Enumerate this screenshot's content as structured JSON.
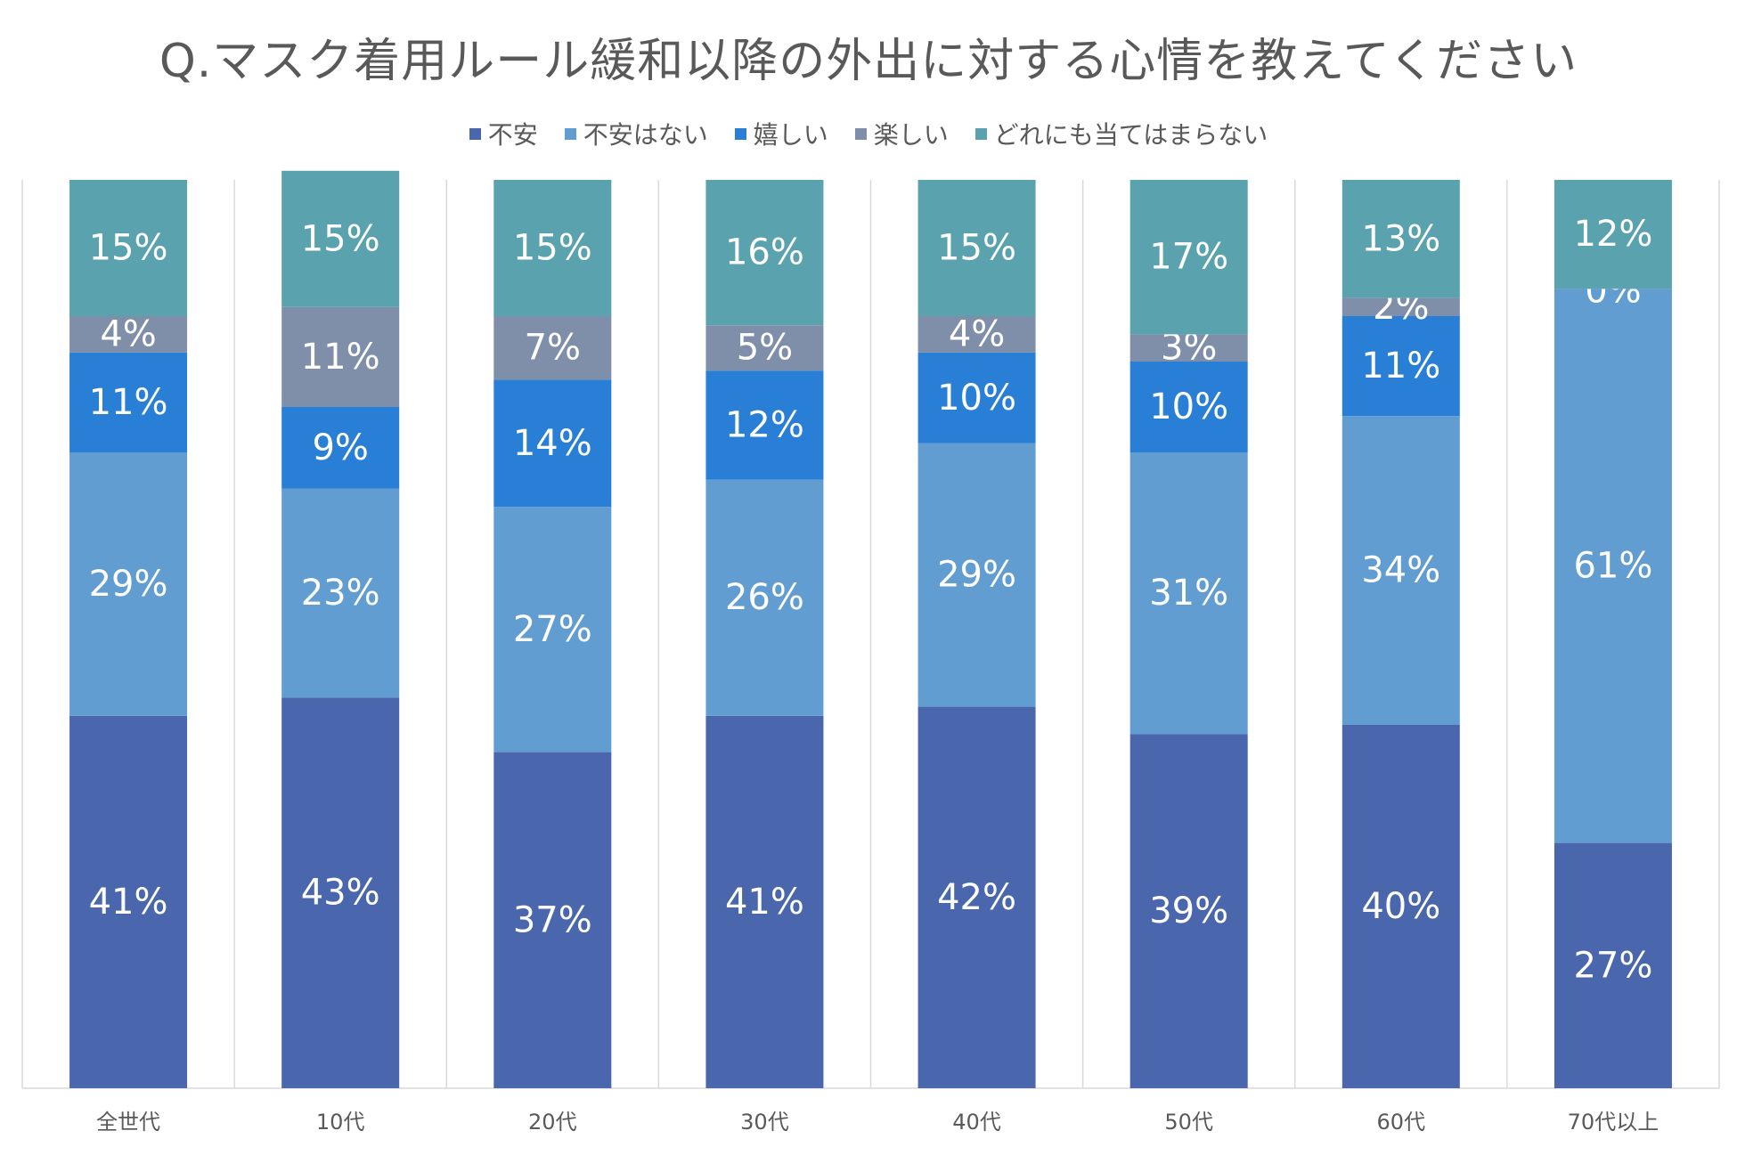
{
  "chart_data": {
    "type": "bar",
    "stacked": true,
    "title": "Q.マスク着用ルール緩和以降の外出に対する心情を教えてください",
    "categories": [
      "全世代",
      "10代",
      "20代",
      "30代",
      "40代",
      "50代",
      "60代",
      "70代以上"
    ],
    "series": [
      {
        "name": "不安",
        "color": "#4a66ac",
        "values": [
          41,
          43,
          37,
          41,
          42,
          39,
          40,
          27
        ],
        "labels": [
          "41%",
          "43%",
          "37%",
          "41%",
          "42%",
          "39%",
          "40%",
          "27%"
        ]
      },
      {
        "name": "不安はない",
        "color": "#629dd1",
        "values": [
          29,
          23,
          27,
          26,
          29,
          31,
          34,
          61
        ],
        "labels": [
          "29%",
          "23%",
          "27%",
          "26%",
          "29%",
          "31%",
          "34%",
          "61%"
        ]
      },
      {
        "name": "嬉しい",
        "color": "#297fd5",
        "values": [
          11,
          9,
          14,
          12,
          10,
          10,
          11,
          0
        ],
        "labels": [
          "11%",
          "9%",
          "14%",
          "12%",
          "10%",
          "10%",
          "11%",
          ""
        ]
      },
      {
        "name": "楽しい",
        "color": "#7f8fa9",
        "values": [
          4,
          11,
          7,
          5,
          4,
          3,
          2,
          0
        ],
        "labels": [
          "4%",
          "11%",
          "7%",
          "5%",
          "4%",
          "3%",
          "2%",
          "0%"
        ]
      },
      {
        "name": "どれにも当てはまらない",
        "color": "#5aa2ae",
        "values": [
          15,
          15,
          15,
          16,
          15,
          17,
          13,
          12
        ],
        "labels": [
          "15%",
          "15%",
          "15%",
          "16%",
          "15%",
          "17%",
          "13%",
          "12%"
        ]
      }
    ],
    "ylim": [
      0,
      100
    ],
    "grid": true,
    "legend_position": "top"
  }
}
